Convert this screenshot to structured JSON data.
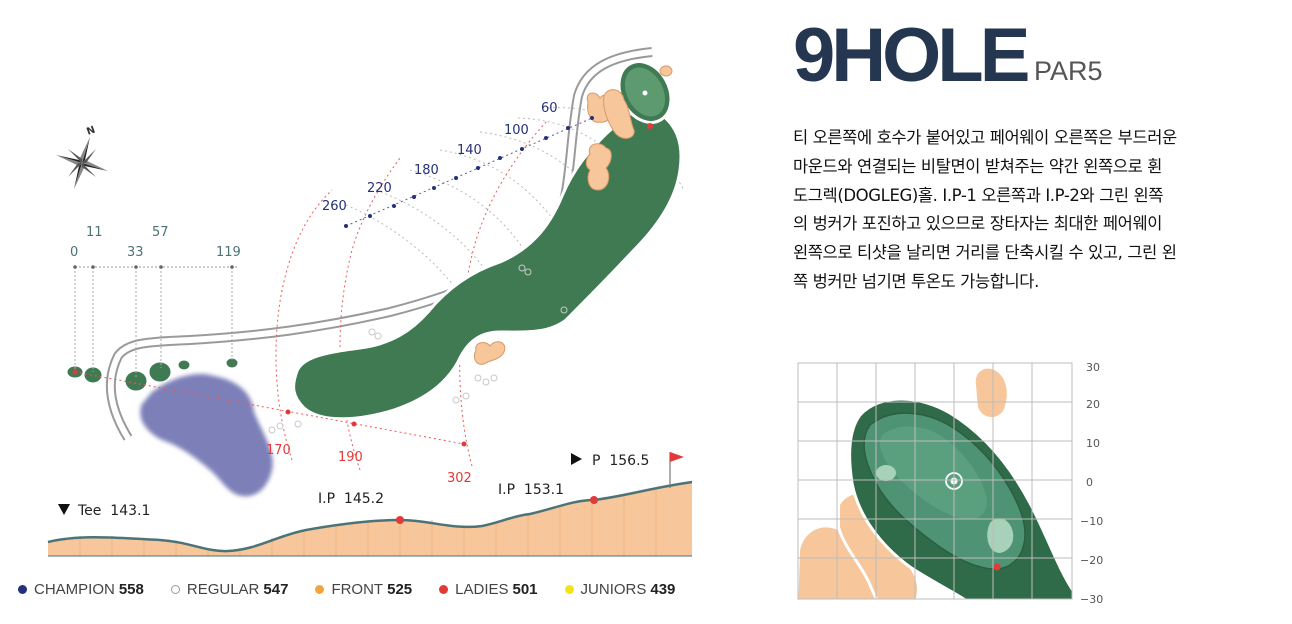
{
  "header": {
    "title": "9HOLE",
    "par": "PAR5"
  },
  "description": "티 오른쪽에 호수가 붙어있고 페어웨이 오른쪽은 부드러운\n마운드와 연결되는 비탈면이 받쳐주는 약간 왼쪽으로 휜\n도그렉(DOGLEG)홀. I.P-1 오른쪽과 I.P-2와 그린 왼쪽\n의 벙커가 포진하고 있으므로 장타자는 최대한 페어웨이\n왼쪽으로 티샷을 날리면 거리를 단축시킬 수 있고, 그린 왼\n쪽 벙커만 넘기면 투온도 가능합니다.",
  "tee_distances": {
    "labels": [
      "0",
      "11",
      "33",
      "57",
      "119"
    ],
    "values": [
      0,
      11,
      33,
      57,
      119
    ]
  },
  "yardage_markers": {
    "labels": [
      "260",
      "220",
      "180",
      "140",
      "100",
      "60"
    ],
    "values": [
      260,
      220,
      180,
      140,
      100,
      60
    ]
  },
  "ip_distances": {
    "labels": [
      "170",
      "190",
      "302"
    ],
    "values": [
      170,
      190,
      302
    ]
  },
  "elevation": {
    "tee_label": "Tee  143.1",
    "ip1_label": "I.P  145.2",
    "ip2_label": "I.P  153.1",
    "pin_label": "P  156.5",
    "values": {
      "tee": 143.1,
      "ip1": 145.2,
      "ip2": 153.1,
      "pin": 156.5
    }
  },
  "green_scale": {
    "labels": [
      "30",
      "20",
      "10",
      "0",
      "−10",
      "−20",
      "−30"
    ],
    "values": [
      30,
      20,
      10,
      0,
      -10,
      -20,
      -30
    ]
  },
  "legend": [
    {
      "name": "CHAMPION",
      "value": "558",
      "color": "#25307a",
      "hollow": false
    },
    {
      "name": "REGULAR",
      "value": "547",
      "color": "#ffffff",
      "hollow": true
    },
    {
      "name": "FRONT",
      "value": "525",
      "color": "#f2a53c",
      "hollow": false
    },
    {
      "name": "LADIES",
      "value": "501",
      "color": "#e23a3a",
      "hollow": false
    },
    {
      "name": "JUNIORS",
      "value": "439",
      "color": "#f2e21c",
      "hollow": false
    }
  ],
  "colors": {
    "fairway": "#3f7a53",
    "water": "#7d80b8",
    "bunker": "#f7c69a",
    "elevation_fill": "#f7c69a",
    "elevation_line": "#4b7378",
    "marker_red": "#e23a3a",
    "champion_navy": "#25307a"
  },
  "icons": {
    "compass": "compass-rose-icon",
    "flag": "pin-flag-icon",
    "tee_marker": "down-triangle-icon",
    "pin_marker": "right-triangle-icon"
  }
}
